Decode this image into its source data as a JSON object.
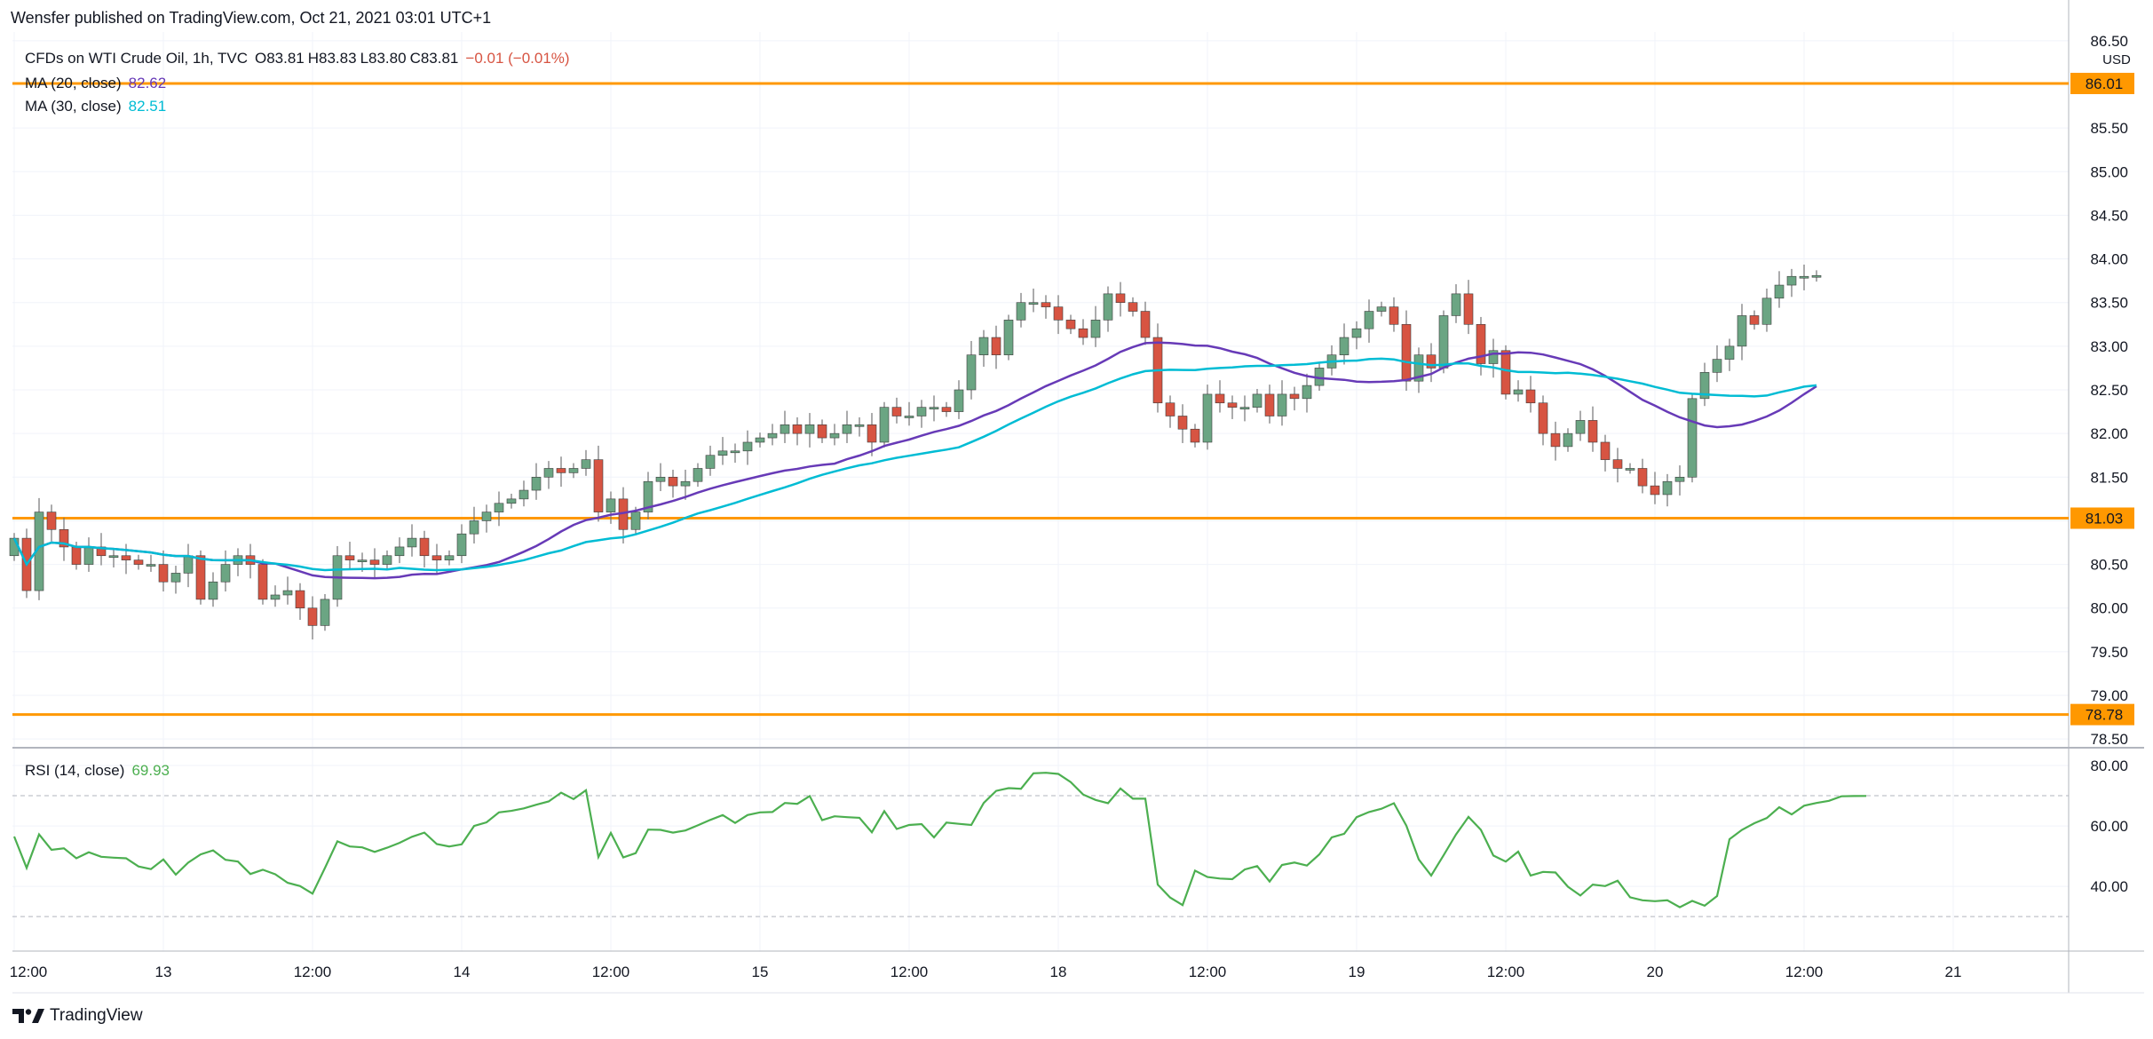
{
  "header": {
    "publisher": "Wensfer published on TradingView.com, Oct 21, 2021 03:01 UTC+1"
  },
  "legend": {
    "symbol": "CFDs on WTI Crude Oil, 1h, TVC",
    "ohlc": {
      "o": "O83.81",
      "h": "H83.83",
      "l": "L83.80",
      "c": "C83.81",
      "change": "−0.01 (−0.01%)"
    },
    "ma20_label": "MA (20, close)",
    "ma20_value": "82.62",
    "ma30_label": "MA (30, close)",
    "ma30_value": "82.51",
    "rsi_label": "RSI (14, close)",
    "rsi_value": "69.93"
  },
  "colors": {
    "up": "#6ba583",
    "down": "#d75442",
    "wick": "#737375",
    "ma20": "#673ab7",
    "ma30": "#00bcd4",
    "level": "#ff9800",
    "rsi": "#4caf50",
    "grid": "#f0f3fa",
    "axis_text": "#131722"
  },
  "footer": {
    "brand": "TradingView"
  },
  "chart_data": {
    "type": "candlestick",
    "price_axis_unit": "USD",
    "price_ticks": [
      "78.50",
      "79.00",
      "79.50",
      "80.00",
      "80.50",
      "81.00",
      "81.50",
      "82.00",
      "82.50",
      "83.00",
      "83.50",
      "84.00",
      "84.50",
      "85.00",
      "85.50",
      "86.00",
      "86.50"
    ],
    "ylim": [
      78.4,
      86.6
    ],
    "time_labels": [
      {
        "label": "12:00",
        "index": 0
      },
      {
        "label": "13",
        "index": 12
      },
      {
        "label": "12:00",
        "index": 24
      },
      {
        "label": "14",
        "index": 36
      },
      {
        "label": "12:00",
        "index": 48
      },
      {
        "label": "15",
        "index": 60
      },
      {
        "label": "12:00",
        "index": 72
      },
      {
        "label": "18",
        "index": 84
      },
      {
        "label": "12:00",
        "index": 96
      },
      {
        "label": "19",
        "index": 108
      },
      {
        "label": "12:00",
        "index": 120
      },
      {
        "label": "20",
        "index": 132
      },
      {
        "label": "12:00",
        "index": 144
      },
      {
        "label": "21",
        "index": 156
      }
    ],
    "horizontal_levels": [
      {
        "price": 86.01,
        "label": "86.01"
      },
      {
        "price": 81.03,
        "label": "81.03"
      },
      {
        "price": 78.78,
        "label": "78.78"
      }
    ],
    "closes": [
      80.8,
      80.2,
      81.1,
      80.9,
      80.7,
      80.5,
      80.7,
      80.6,
      80.6,
      80.55,
      80.5,
      80.5,
      80.3,
      80.4,
      80.6,
      80.1,
      80.3,
      80.5,
      80.6,
      80.5,
      80.1,
      80.15,
      80.2,
      80.0,
      79.8,
      80.1,
      80.6,
      80.55,
      80.55,
      80.5,
      80.6,
      80.7,
      80.8,
      80.6,
      80.55,
      80.6,
      80.85,
      81.0,
      81.1,
      81.2,
      81.25,
      81.35,
      81.5,
      81.6,
      81.55,
      81.6,
      81.7,
      81.1,
      81.25,
      80.9,
      81.1,
      81.45,
      81.5,
      81.4,
      81.45,
      81.6,
      81.75,
      81.8,
      81.8,
      81.9,
      81.95,
      82.0,
      82.1,
      82.0,
      82.1,
      81.95,
      82.0,
      82.1,
      82.1,
      81.9,
      82.3,
      82.2,
      82.2,
      82.3,
      82.3,
      82.25,
      82.5,
      82.9,
      83.1,
      82.9,
      83.3,
      83.5,
      83.5,
      83.45,
      83.3,
      83.2,
      83.1,
      83.3,
      83.6,
      83.5,
      83.4,
      83.1,
      82.35,
      82.2,
      82.05,
      81.9,
      82.45,
      82.35,
      82.3,
      82.3,
      82.45,
      82.2,
      82.45,
      82.4,
      82.55,
      82.75,
      82.9,
      83.1,
      83.2,
      83.4,
      83.45,
      83.25,
      82.6,
      82.9,
      82.75,
      83.35,
      83.6,
      83.25,
      82.8,
      82.95,
      82.45,
      82.5,
      82.35,
      82.0,
      81.85,
      82.0,
      82.15,
      81.9,
      81.7,
      81.6,
      81.6,
      81.4,
      81.3,
      81.45,
      81.5,
      82.4,
      82.7,
      82.85,
      83.0,
      83.35,
      83.25,
      83.55,
      83.7,
      83.8,
      83.8,
      83.81
    ]
  },
  "rsi_data": {
    "values": [
      56.5,
      46.1,
      57.2,
      52.1,
      52.6,
      49.3,
      51.3,
      49.8,
      49.5,
      49.3,
      46.6,
      45.7,
      48.9,
      43.9,
      47.9,
      50.6,
      51.9,
      48.8,
      48.2,
      44.1,
      45.5,
      44.0,
      41.2,
      40.1,
      37.6,
      46.1,
      54.9,
      53.2,
      52.9,
      51.4,
      52.8,
      54.4,
      56.4,
      57.8,
      54.0,
      53.2,
      53.9,
      60.0,
      61.2,
      64.5,
      65.0,
      65.8,
      67.0,
      68.1,
      71.0,
      68.9,
      71.8,
      49.7,
      57.7,
      49.6,
      51.0,
      58.8,
      58.7,
      57.8,
      58.5,
      60.2,
      62.0,
      63.6,
      61.0,
      63.6,
      64.5,
      64.6,
      67.6,
      67.3,
      69.9,
      61.9,
      63.2,
      62.9,
      62.7,
      57.9,
      64.9,
      59.0,
      60.3,
      60.6,
      56.2,
      61.1,
      60.7,
      60.3,
      67.6,
      71.6,
      72.5,
      72.3,
      77.4,
      77.6,
      77.2,
      74.5,
      70.4,
      68.6,
      67.5,
      72.4,
      69.0,
      69.0,
      40.6,
      36.3,
      33.8,
      45.2,
      43.1,
      42.6,
      42.4,
      45.6,
      46.7,
      41.6,
      47.1,
      47.9,
      46.9,
      50.6,
      56.2,
      57.4,
      62.9,
      64.6,
      65.7,
      67.5,
      60.1,
      48.9,
      43.6,
      50.3,
      57.2,
      63.0,
      58.7,
      50.2,
      48.2,
      51.5,
      43.6,
      44.8,
      44.6,
      39.9,
      37.0,
      40.6,
      40.1,
      41.9,
      36.4,
      35.4,
      35.1,
      35.4,
      33.1,
      35.2,
      33.6,
      36.8,
      55.6,
      58.7,
      60.9,
      62.6,
      66.2,
      63.8,
      66.7,
      67.6,
      68.3,
      69.8,
      69.9,
      69.93
    ]
  },
  "ui": {
    "rsi_axis_labels": [
      "40.00",
      "60.00",
      "80.00"
    ]
  }
}
